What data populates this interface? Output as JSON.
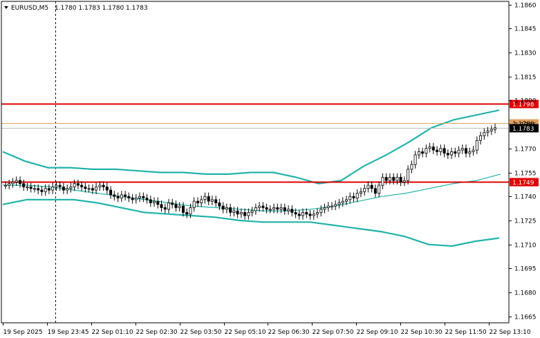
{
  "header": {
    "symbol": "EURUSD,M5",
    "ohlc": "1.1780 1.1783 1.1780 1.1783"
  },
  "colors": {
    "bullish_candle": "#ffffff",
    "bearish_candle": "#000000",
    "bollinger": "#20b2aa",
    "level": "#e00000",
    "price_line": "#bbbbbb",
    "ask_line": "#e0a060"
  },
  "chart_data": {
    "type": "candlestick",
    "symbol": "EURUSD",
    "timeframe": "M5",
    "ylim": [
      1.1661,
      1.1862
    ],
    "y_ticks": [
      "1.1860",
      "1.1845",
      "1.1830",
      "1.1815",
      "1.1800",
      "1.1785",
      "1.1770",
      "1.1755",
      "1.1740",
      "1.1725",
      "1.1710",
      "1.1695",
      "1.1680",
      "1.1665"
    ],
    "x_ticks": [
      "19 Sep 2025",
      "19 Sep 23:45",
      "22 Sep 01:10",
      "22 Sep 02:30",
      "22 Sep 03:50",
      "22 Sep 05:10",
      "22 Sep 06:30",
      "22 Sep 07:50",
      "22 Sep 09:10",
      "22 Sep 10:30",
      "22 Sep 11:50",
      "22 Sep 13:10"
    ],
    "levels": [
      {
        "value": 1.1798,
        "label": "1.1798"
      },
      {
        "value": 1.1749,
        "label": "1.1749"
      }
    ],
    "current_price": {
      "value": 1.1783,
      "label": "1.1783"
    },
    "ask_price": {
      "value": 1.1786,
      "label": "1.1786"
    },
    "close": [
      1.1747,
      1.1748,
      1.1749,
      1.175,
      1.1748,
      1.1746,
      1.1746,
      1.1745,
      1.1745,
      1.1744,
      1.1743,
      1.1745,
      1.1744,
      1.1746,
      1.1747,
      1.1746,
      1.1744,
      1.1745,
      1.1746,
      1.1748,
      1.1747,
      1.1746,
      1.1745,
      1.1745,
      1.1744,
      1.1746,
      1.1747,
      1.1746,
      1.1744,
      1.1741,
      1.174,
      1.1739,
      1.1741,
      1.174,
      1.1739,
      1.1738,
      1.1739,
      1.174,
      1.1739,
      1.1738,
      1.1736,
      1.1737,
      1.1735,
      1.1733,
      1.1732,
      1.1736,
      1.1735,
      1.1733,
      1.1734,
      1.173,
      1.1729,
      1.1733,
      1.1737,
      1.1736,
      1.1738,
      1.174,
      1.1737,
      1.1738,
      1.1736,
      1.1734,
      1.1732,
      1.1733,
      1.173,
      1.1731,
      1.1729,
      1.173,
      1.1728,
      1.173,
      1.1731,
      1.1733,
      1.1734,
      1.1733,
      1.1732,
      1.1732,
      1.1733,
      1.1732,
      1.1733,
      1.1731,
      1.1732,
      1.173,
      1.1729,
      1.1728,
      1.173,
      1.1729,
      1.1728,
      1.1729,
      1.173,
      1.1732,
      1.1733,
      1.1734,
      1.1734,
      1.1735,
      1.1736,
      1.1737,
      1.1738,
      1.174,
      1.1739,
      1.1742,
      1.1743,
      1.1745,
      1.1747,
      1.1745,
      1.1742,
      1.1747,
      1.1752,
      1.175,
      1.1752,
      1.175,
      1.1752,
      1.1749,
      1.175,
      1.1757,
      1.176,
      1.1766,
      1.1768,
      1.1767,
      1.177,
      1.1771,
      1.1769,
      1.1768,
      1.177,
      1.1767,
      1.1766,
      1.1768,
      1.1767,
      1.1769,
      1.177,
      1.1767,
      1.1768,
      1.1769,
      1.1775,
      1.1778,
      1.178,
      1.1781,
      1.1782,
      1.1783
    ],
    "bollinger_upper": [
      1.1768,
      1.1762,
      1.1758,
      1.1758,
      1.1757,
      1.1757,
      1.1756,
      1.1755,
      1.1755,
      1.1754,
      1.1754,
      1.1755,
      1.1755,
      1.1752,
      1.1748,
      1.175,
      1.1759,
      1.1766,
      1.1774,
      1.1783,
      1.1788,
      1.1791,
      1.1794
    ],
    "bollinger_middle": [
      1.1747,
      1.1747,
      1.1746,
      1.1744,
      1.1742,
      1.174,
      1.1738,
      1.1736,
      1.1734,
      1.1733,
      1.1732,
      1.1731,
      1.1731,
      1.1732,
      1.1734,
      1.1737,
      1.174,
      1.1742,
      1.1745,
      1.1748,
      1.175,
      1.1754
    ],
    "bollinger_lower": [
      1.1735,
      1.1738,
      1.1738,
      1.1738,
      1.1736,
      1.1733,
      1.173,
      1.1729,
      1.1728,
      1.1727,
      1.1725,
      1.1724,
      1.1724,
      1.1724,
      1.1722,
      1.172,
      1.1718,
      1.1715,
      1.171,
      1.1709,
      1.1712,
      1.1714
    ]
  }
}
